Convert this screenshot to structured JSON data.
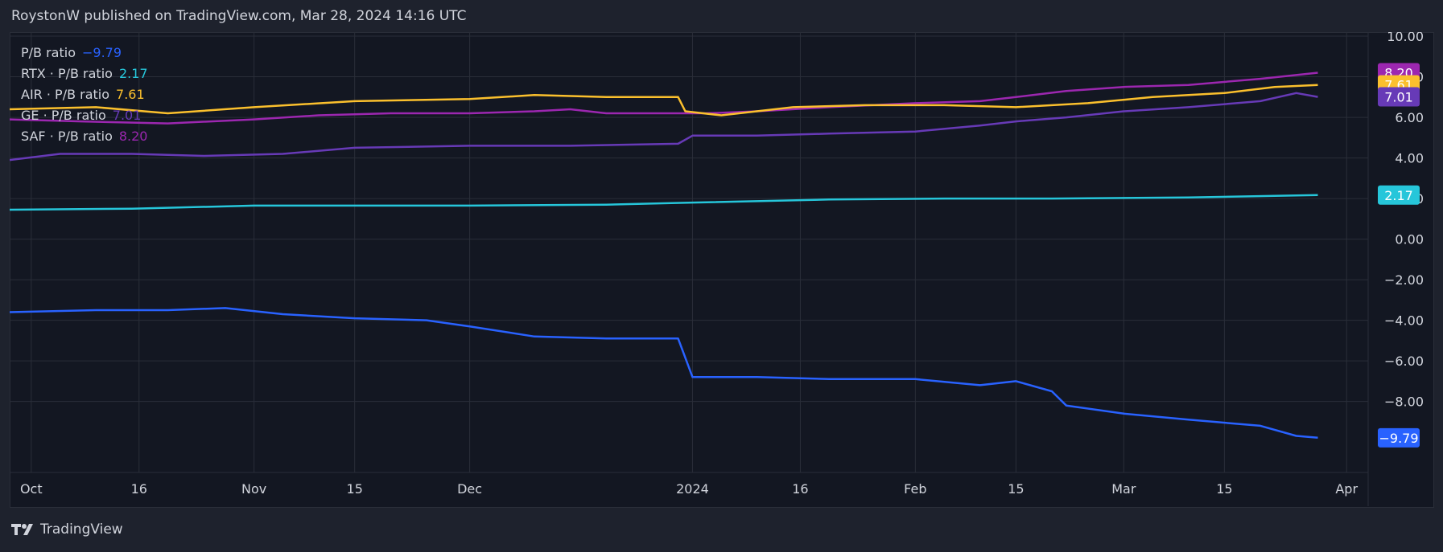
{
  "header": {
    "text": "RoystonW published on TradingView.com, Mar 28, 2024 14:16 UTC"
  },
  "footer": {
    "brand": "TradingView"
  },
  "legend": [
    {
      "label": "P/B ratio",
      "value": "−9.79",
      "color": "#2962ff"
    },
    {
      "label": "RTX · P/B ratio",
      "value": "2.17",
      "color": "#26c6da"
    },
    {
      "label": "AIR · P/B ratio",
      "value": "7.61",
      "color": "#fbc02d"
    },
    {
      "label": "GE · P/B ratio",
      "value": "7.01",
      "color": "#673ab7"
    },
    {
      "label": "SAF · P/B ratio",
      "value": "8.20",
      "color": "#9c27b0"
    }
  ],
  "chart_data": {
    "type": "line",
    "ylim": [
      -11.5,
      10.2
    ],
    "y_ticks": [
      "10.00",
      "8.00",
      "6.00",
      "4.00",
      "2.00",
      "0.00",
      "−2.00",
      "−4.00",
      "−6.00",
      "−8.00"
    ],
    "y_tick_values": [
      10,
      8,
      6,
      4,
      2,
      0,
      -2,
      -4,
      -6,
      -8
    ],
    "x_ticks": [
      {
        "label": "Oct",
        "date": "2023-10-01"
      },
      {
        "label": "16",
        "date": "2023-10-16"
      },
      {
        "label": "Nov",
        "date": "2023-11-01"
      },
      {
        "label": "15",
        "date": "2023-11-15"
      },
      {
        "label": "Dec",
        "date": "2023-12-01"
      },
      {
        "label": "2024",
        "date": "2024-01-01"
      },
      {
        "label": "16",
        "date": "2024-01-16"
      },
      {
        "label": "Feb",
        "date": "2024-02-01"
      },
      {
        "label": "15",
        "date": "2024-02-15"
      },
      {
        "label": "Mar",
        "date": "2024-03-01"
      },
      {
        "label": "15",
        "date": "2024-03-15"
      },
      {
        "label": "Apr",
        "date": "2024-04-01"
      }
    ],
    "xlim": [
      "2023-09-28",
      "2024-04-04"
    ],
    "grid": true,
    "legend_position": "top-left",
    "series": [
      {
        "name": "SAF · P/B ratio",
        "color": "#9c27b0",
        "last_label": "8.20",
        "points": [
          [
            "2023-09-28",
            5.9
          ],
          [
            "2023-10-08",
            5.8
          ],
          [
            "2023-10-20",
            5.7
          ],
          [
            "2023-11-01",
            5.9
          ],
          [
            "2023-11-10",
            6.1
          ],
          [
            "2023-11-20",
            6.2
          ],
          [
            "2023-12-01",
            6.2
          ],
          [
            "2023-12-10",
            6.3
          ],
          [
            "2023-12-15",
            6.4
          ],
          [
            "2023-12-20",
            6.2
          ],
          [
            "2023-12-31",
            6.2
          ],
          [
            "2024-01-03",
            6.2
          ],
          [
            "2024-01-10",
            6.3
          ],
          [
            "2024-01-20",
            6.5
          ],
          [
            "2024-02-01",
            6.7
          ],
          [
            "2024-02-10",
            6.8
          ],
          [
            "2024-02-15",
            7.0
          ],
          [
            "2024-02-22",
            7.3
          ],
          [
            "2024-03-01",
            7.5
          ],
          [
            "2024-03-10",
            7.6
          ],
          [
            "2024-03-20",
            7.9
          ],
          [
            "2024-03-28",
            8.2
          ]
        ]
      },
      {
        "name": "AIR · P/B ratio",
        "color": "#fbc02d",
        "last_label": "7.61",
        "points": [
          [
            "2023-09-28",
            6.4
          ],
          [
            "2023-10-10",
            6.5
          ],
          [
            "2023-10-20",
            6.2
          ],
          [
            "2023-11-01",
            6.5
          ],
          [
            "2023-11-15",
            6.8
          ],
          [
            "2023-12-01",
            6.9
          ],
          [
            "2023-12-10",
            7.1
          ],
          [
            "2023-12-20",
            7.0
          ],
          [
            "2023-12-30",
            7.0
          ],
          [
            "2023-12-31",
            6.3
          ],
          [
            "2024-01-05",
            6.1
          ],
          [
            "2024-01-15",
            6.5
          ],
          [
            "2024-01-25",
            6.6
          ],
          [
            "2024-02-05",
            6.6
          ],
          [
            "2024-02-15",
            6.5
          ],
          [
            "2024-02-25",
            6.7
          ],
          [
            "2024-03-05",
            7.0
          ],
          [
            "2024-03-15",
            7.2
          ],
          [
            "2024-03-22",
            7.5
          ],
          [
            "2024-03-28",
            7.6
          ]
        ]
      },
      {
        "name": "GE · P/B ratio",
        "color": "#673ab7",
        "last_label": "7.01",
        "points": [
          [
            "2023-09-28",
            3.9
          ],
          [
            "2023-10-05",
            4.2
          ],
          [
            "2023-10-15",
            4.2
          ],
          [
            "2023-10-25",
            4.1
          ],
          [
            "2023-11-05",
            4.2
          ],
          [
            "2023-11-15",
            4.5
          ],
          [
            "2023-12-01",
            4.6
          ],
          [
            "2023-12-15",
            4.6
          ],
          [
            "2023-12-30",
            4.7
          ],
          [
            "2024-01-01",
            5.1
          ],
          [
            "2024-01-10",
            5.1
          ],
          [
            "2024-01-20",
            5.2
          ],
          [
            "2024-02-01",
            5.3
          ],
          [
            "2024-02-10",
            5.6
          ],
          [
            "2024-02-15",
            5.8
          ],
          [
            "2024-02-22",
            6.0
          ],
          [
            "2024-03-01",
            6.3
          ],
          [
            "2024-03-10",
            6.5
          ],
          [
            "2024-03-20",
            6.8
          ],
          [
            "2024-03-25",
            7.2
          ],
          [
            "2024-03-28",
            7.01
          ]
        ]
      },
      {
        "name": "RTX · P/B ratio",
        "color": "#26c6da",
        "last_label": "2.17",
        "points": [
          [
            "2023-09-28",
            1.45
          ],
          [
            "2023-10-15",
            1.5
          ],
          [
            "2023-11-01",
            1.65
          ],
          [
            "2023-11-15",
            1.65
          ],
          [
            "2023-12-01",
            1.65
          ],
          [
            "2023-12-20",
            1.7
          ],
          [
            "2024-01-01",
            1.8
          ],
          [
            "2024-01-20",
            1.95
          ],
          [
            "2024-02-05",
            2.0
          ],
          [
            "2024-02-20",
            2.0
          ],
          [
            "2024-03-10",
            2.05
          ],
          [
            "2024-03-28",
            2.17
          ]
        ]
      },
      {
        "name": "P/B ratio",
        "color": "#2962ff",
        "last_label": "−9.79",
        "points": [
          [
            "2023-09-28",
            -3.6
          ],
          [
            "2023-10-10",
            -3.5
          ],
          [
            "2023-10-20",
            -3.5
          ],
          [
            "2023-10-28",
            -3.4
          ],
          [
            "2023-11-05",
            -3.7
          ],
          [
            "2023-11-15",
            -3.9
          ],
          [
            "2023-11-25",
            -4.0
          ],
          [
            "2023-12-01",
            -4.3
          ],
          [
            "2023-12-10",
            -4.8
          ],
          [
            "2023-12-20",
            -4.9
          ],
          [
            "2023-12-30",
            -4.9
          ],
          [
            "2024-01-01",
            -6.8
          ],
          [
            "2024-01-10",
            -6.8
          ],
          [
            "2024-01-20",
            -6.9
          ],
          [
            "2024-02-01",
            -6.9
          ],
          [
            "2024-02-10",
            -7.2
          ],
          [
            "2024-02-15",
            -7.0
          ],
          [
            "2024-02-20",
            -7.5
          ],
          [
            "2024-02-22",
            -8.2
          ],
          [
            "2024-03-01",
            -8.6
          ],
          [
            "2024-03-10",
            -8.9
          ],
          [
            "2024-03-20",
            -9.2
          ],
          [
            "2024-03-25",
            -9.7
          ],
          [
            "2024-03-28",
            -9.79
          ]
        ]
      }
    ]
  }
}
